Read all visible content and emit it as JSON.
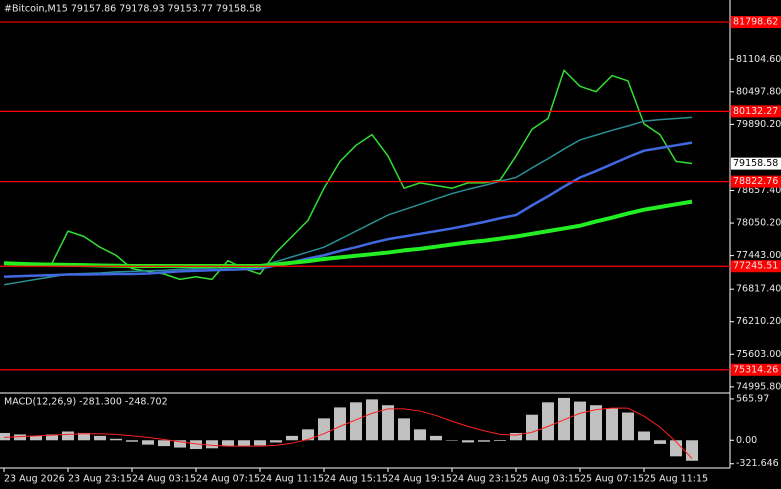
{
  "chart_data": [
    {
      "type": "line",
      "title": "#Bitcoin,M15  79157.86 79178.93 79153.77 79158.58",
      "categories": [
        "23 Aug 2026",
        null,
        null,
        null,
        "23 Aug 23:15",
        null,
        null,
        null,
        "24 Aug 03:15",
        null,
        null,
        null,
        "24 Aug 07:15",
        null,
        null,
        null,
        "24 Aug 11:15",
        null,
        null,
        null,
        "24 Aug 15:15",
        null,
        null,
        null,
        "24 Aug 19:15",
        null,
        null,
        null,
        "24 Aug 23:15",
        null,
        null,
        null,
        "25 Aug 03:15",
        null,
        null,
        null,
        "25 Aug 07:15",
        null,
        null,
        null,
        "25 Aug 11:15",
        null,
        null,
        null
      ],
      "series": [
        {
          "color": "#33dd33",
          "width": 1.5,
          "values": [
            77300,
            77280,
            77250,
            77300,
            77900,
            77800,
            77600,
            77450,
            77200,
            77150,
            77100,
            77000,
            77050,
            77000,
            77350,
            77200,
            77100,
            77500,
            77800,
            78100,
            78700,
            79200,
            79500,
            79700,
            79300,
            78700,
            78800,
            78750,
            78700,
            78800,
            78800,
            78850,
            79300,
            79800,
            80000,
            80900,
            80600,
            80500,
            80800,
            80700,
            79900,
            79700,
            79200,
            79160
          ]
        },
        {
          "color": "#2a8f96",
          "width": 1.5,
          "values": [
            76900,
            76950,
            77000,
            77050,
            77100,
            77110,
            77120,
            77140,
            77150,
            77160,
            77170,
            77190,
            77200,
            77210,
            77220,
            77240,
            77250,
            77330,
            77420,
            77510,
            77600,
            77750,
            77900,
            78050,
            78200,
            78300,
            78400,
            78500,
            78600,
            78680,
            78750,
            78830,
            78900,
            79080,
            79250,
            79430,
            79600,
            79690,
            79780,
            79860,
            79950,
            79980,
            80000,
            80020
          ]
        },
        {
          "color": "#4169e1",
          "width": 2.5,
          "values": [
            77050,
            77060,
            77070,
            77080,
            77090,
            77090,
            77095,
            77100,
            77100,
            77110,
            77130,
            77150,
            77160,
            77170,
            77180,
            77190,
            77200,
            77260,
            77320,
            77390,
            77450,
            77530,
            77600,
            77680,
            77750,
            77800,
            77850,
            77900,
            77950,
            78010,
            78070,
            78140,
            78200,
            78380,
            78550,
            78730,
            78900,
            79020,
            79150,
            79280,
            79400,
            79450,
            79500,
            79550
          ]
        },
        {
          "color": "#22ee22",
          "width": 4,
          "values": [
            77300,
            77290,
            77280,
            77275,
            77270,
            77265,
            77260,
            77255,
            77250,
            77250,
            77250,
            77250,
            77250,
            77250,
            77250,
            77250,
            77250,
            77280,
            77310,
            77340,
            77380,
            77410,
            77440,
            77470,
            77500,
            77540,
            77570,
            77610,
            77650,
            77690,
            77720,
            77760,
            77800,
            77850,
            77900,
            77950,
            78000,
            78080,
            78150,
            78230,
            78300,
            78350,
            78400,
            78450
          ]
        }
      ],
      "ylim": [
        74900,
        81930
      ],
      "yticks": [
        {
          "value": 81104.6,
          "label": "81104.60"
        },
        {
          "value": 80497.8,
          "label": "80497.80"
        },
        {
          "value": 79890.2,
          "label": "79890.20"
        },
        {
          "value": 78657.4,
          "label": "78657.40"
        },
        {
          "value": 78050.2,
          "label": "78050.20"
        },
        {
          "value": 77443,
          "label": "77443.00"
        },
        {
          "value": 76817.4,
          "label": "76817.40"
        },
        {
          "value": 76210.2,
          "label": "76210.20"
        },
        {
          "value": 75603,
          "label": "75603.00"
        },
        {
          "value": 74995.8,
          "label": "74995.80"
        }
      ],
      "levels": [
        81798.62,
        80132.27,
        78822.76,
        77245.51,
        75314.26
      ],
      "level_color": "#ff0000",
      "current_price": 79158.58
    },
    {
      "type": "bar",
      "title": "MACD(12,26,9) -281.300 -248.702",
      "color": "#c0c0c0",
      "values": [
        100,
        80,
        60,
        80,
        120,
        100,
        60,
        20,
        -20,
        -60,
        -80,
        -100,
        -120,
        -110,
        -80,
        -80,
        -70,
        -30,
        60,
        150,
        300,
        450,
        520,
        560,
        480,
        300,
        150,
        60,
        0,
        -30,
        -20,
        -10,
        100,
        350,
        520,
        580,
        530,
        480,
        440,
        380,
        120,
        -50,
        -220,
        -281.3
      ],
      "signal": {
        "color": "#ff2020",
        "values": [
          40,
          50,
          60,
          70,
          80,
          90,
          90,
          80,
          60,
          40,
          10,
          -20,
          -50,
          -70,
          -80,
          -80,
          -80,
          -70,
          -40,
          10,
          90,
          190,
          280,
          370,
          430,
          430,
          400,
          340,
          260,
          190,
          130,
          80,
          70,
          110,
          190,
          280,
          370,
          420,
          440,
          440,
          330,
          180,
          -20,
          -248.702
        ]
      },
      "ylim": [
        -380,
        620
      ],
      "yticks": [
        {
          "value": 565.97,
          "label": "565.97"
        },
        {
          "value": 0,
          "label": "0.00"
        },
        {
          "value": -321.646,
          "label": "-321.646"
        }
      ]
    }
  ]
}
